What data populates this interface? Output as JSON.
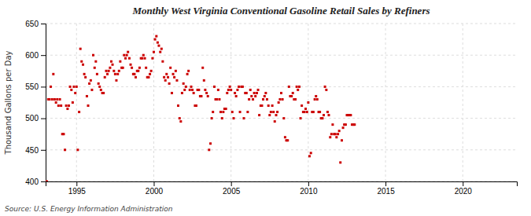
{
  "chart_data": {
    "type": "scatter",
    "title": "Monthly West Virginia Conventional Gasoline Retail Sales by Refiners",
    "y_label": "Thousand Gallons per Day",
    "annotations": [
      "Source: U.S. Energy Information Administration"
    ],
    "color": "#cc0000",
    "marker": "square",
    "grid": true,
    "xlim": [
      1993.0,
      2023.5
    ],
    "ylim": [
      400,
      650
    ],
    "xticks": [
      1995,
      2000,
      2005,
      2010,
      2015,
      2020
    ],
    "yticks": [
      400,
      450,
      500,
      550,
      600,
      650
    ],
    "x": [
      1993.08,
      1993.17,
      1993.25,
      1993.33,
      1993.42,
      1993.5,
      1993.58,
      1993.67,
      1993.75,
      1993.83,
      1993.92,
      1994.0,
      1994.08,
      1994.17,
      1994.25,
      1994.33,
      1994.42,
      1994.5,
      1994.58,
      1994.67,
      1994.75,
      1994.83,
      1994.92,
      1995.0,
      1995.08,
      1995.17,
      1995.25,
      1995.33,
      1995.42,
      1995.5,
      1995.58,
      1995.67,
      1995.75,
      1995.83,
      1995.92,
      1996.0,
      1996.08,
      1996.17,
      1996.25,
      1996.33,
      1996.42,
      1996.5,
      1996.58,
      1996.67,
      1996.75,
      1996.83,
      1996.92,
      1997.0,
      1997.08,
      1997.17,
      1997.25,
      1997.33,
      1997.42,
      1997.5,
      1997.58,
      1997.67,
      1997.75,
      1997.83,
      1997.92,
      1998.0,
      1998.08,
      1998.17,
      1998.25,
      1998.33,
      1998.42,
      1998.5,
      1998.58,
      1998.67,
      1998.75,
      1998.83,
      1998.92,
      1999.0,
      1999.08,
      1999.17,
      1999.25,
      1999.33,
      1999.42,
      1999.5,
      1999.58,
      1999.67,
      1999.75,
      1999.83,
      1999.92,
      2000.0,
      2000.08,
      2000.17,
      2000.25,
      2000.33,
      2000.42,
      2000.5,
      2000.58,
      2000.67,
      2000.75,
      2000.83,
      2000.92,
      2001.0,
      2001.08,
      2001.17,
      2001.25,
      2001.33,
      2001.42,
      2001.5,
      2001.58,
      2001.67,
      2001.75,
      2001.83,
      2001.92,
      2002.0,
      2002.08,
      2002.17,
      2002.25,
      2002.33,
      2002.42,
      2002.5,
      2002.58,
      2002.67,
      2002.75,
      2002.83,
      2002.92,
      2003.0,
      2003.08,
      2003.17,
      2003.25,
      2003.33,
      2003.42,
      2003.5,
      2003.58,
      2003.67,
      2003.75,
      2003.83,
      2003.92,
      2004.0,
      2004.08,
      2004.17,
      2004.25,
      2004.33,
      2004.42,
      2004.5,
      2004.58,
      2004.67,
      2004.75,
      2004.83,
      2004.92,
      2005.0,
      2005.08,
      2005.17,
      2005.25,
      2005.33,
      2005.42,
      2005.5,
      2005.58,
      2005.67,
      2005.75,
      2005.83,
      2005.92,
      2006.0,
      2006.08,
      2006.17,
      2006.25,
      2006.33,
      2006.42,
      2006.5,
      2006.58,
      2006.67,
      2006.75,
      2006.83,
      2006.92,
      2007.0,
      2007.08,
      2007.17,
      2007.25,
      2007.33,
      2007.42,
      2007.5,
      2007.58,
      2007.67,
      2007.75,
      2007.83,
      2007.92,
      2008.0,
      2008.08,
      2008.17,
      2008.25,
      2008.33,
      2008.42,
      2008.5,
      2008.58,
      2008.67,
      2008.75,
      2008.83,
      2008.92,
      2009.0,
      2009.08,
      2009.17,
      2009.25,
      2009.33,
      2009.42,
      2009.5,
      2009.58,
      2009.67,
      2009.75,
      2009.83,
      2009.92,
      2010.0,
      2010.08,
      2010.17,
      2010.25,
      2010.33,
      2010.42,
      2010.5,
      2010.58,
      2010.67,
      2010.75,
      2010.83,
      2010.92,
      2011.0,
      2011.08,
      2011.17,
      2011.25,
      2011.33,
      2011.42,
      2011.5,
      2011.58,
      2011.67,
      2011.75,
      2011.83,
      2011.92,
      2012.0,
      2012.08,
      2012.17,
      2012.25,
      2012.33,
      2012.42,
      2012.5,
      2012.58,
      2012.67,
      2012.75,
      2012.83,
      2012.92,
      2013.0
    ],
    "values": [
      400,
      530,
      530,
      550,
      530,
      570,
      530,
      525,
      530,
      520,
      530,
      520,
      475,
      475,
      450,
      520,
      515,
      520,
      550,
      545,
      525,
      550,
      540,
      550,
      450,
      510,
      610,
      590,
      585,
      570,
      565,
      535,
      520,
      555,
      560,
      545,
      600,
      580,
      590,
      570,
      555,
      550,
      545,
      540,
      540,
      565,
      575,
      570,
      575,
      580,
      590,
      585,
      575,
      570,
      560,
      570,
      575,
      590,
      580,
      580,
      600,
      595,
      600,
      605,
      595,
      585,
      580,
      570,
      570,
      565,
      575,
      575,
      580,
      595,
      595,
      600,
      595,
      580,
      565,
      565,
      570,
      575,
      595,
      605,
      625,
      630,
      620,
      615,
      605,
      610,
      590,
      565,
      560,
      570,
      565,
      555,
      580,
      540,
      570,
      565,
      575,
      560,
      520,
      500,
      495,
      540,
      555,
      545,
      550,
      570,
      575,
      545,
      550,
      545,
      540,
      520,
      520,
      545,
      545,
      535,
      535,
      580,
      560,
      545,
      540,
      535,
      450,
      460,
      500,
      510,
      550,
      530,
      530,
      545,
      530,
      510,
      500,
      510,
      515,
      515,
      540,
      545,
      550,
      545,
      510,
      500,
      540,
      535,
      545,
      550,
      510,
      550,
      550,
      500,
      540,
      540,
      510,
      530,
      545,
      535,
      530,
      540,
      535,
      540,
      545,
      505,
      520,
      520,
      530,
      535,
      540,
      530,
      520,
      505,
      510,
      520,
      510,
      495,
      505,
      510,
      525,
      530,
      540,
      530,
      500,
      470,
      465,
      465,
      550,
      535,
      535,
      540,
      530,
      530,
      550,
      545,
      550,
      500,
      520,
      510,
      510,
      515,
      510,
      525,
      440,
      445,
      510,
      510,
      530,
      535,
      530,
      510,
      510,
      500,
      500,
      505,
      550,
      545,
      510,
      505,
      470,
      475,
      490,
      475,
      475,
      470,
      475,
      480,
      430,
      465,
      485,
      490,
      490,
      505,
      505,
      505,
      505,
      490,
      490,
      490
    ]
  }
}
